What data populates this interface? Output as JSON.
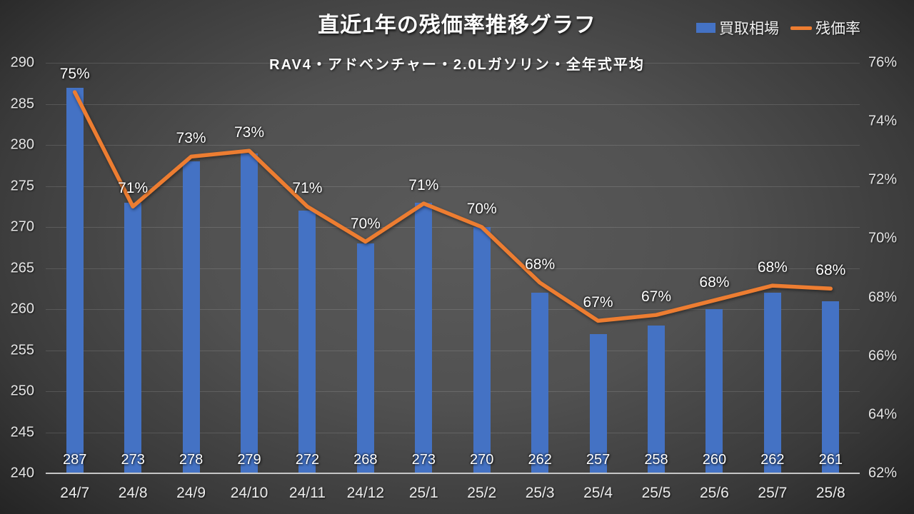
{
  "chart_data": {
    "type": "combo-bar-line",
    "title": "直近1年の残価率推移グラフ",
    "subtitle": "RAV4・アドベンチャー・2.0Lガソリン・全年式平均",
    "categories": [
      "24/7",
      "24/8",
      "24/9",
      "24/10",
      "24/11",
      "24/12",
      "25/1",
      "25/2",
      "25/3",
      "25/4",
      "25/5",
      "25/6",
      "25/7",
      "25/8"
    ],
    "series": [
      {
        "name": "買取相場",
        "type": "bar",
        "axis": "left",
        "color": "#4472C4",
        "values": [
          287,
          273,
          278,
          279,
          272,
          268,
          273,
          270,
          262,
          257,
          258,
          260,
          262,
          261
        ],
        "labels": [
          "287",
          "273",
          "278",
          "279",
          "272",
          "268",
          "273",
          "270",
          "262",
          "257",
          "258",
          "260",
          "262",
          "261"
        ]
      },
      {
        "name": "残価率",
        "type": "line",
        "axis": "right",
        "color": "#ED7D31",
        "values": [
          75,
          71,
          73,
          73,
          71,
          70,
          71,
          70,
          68,
          67,
          67,
          68,
          68,
          68
        ],
        "labels": [
          "75%",
          "71%",
          "73%",
          "73%",
          "71%",
          "70%",
          "71%",
          "70%",
          "68%",
          "67%",
          "67%",
          "68%",
          "68%",
          "68%"
        ],
        "plot_values": [
          75.0,
          71.1,
          72.8,
          73.0,
          71.1,
          69.9,
          71.2,
          70.4,
          68.5,
          67.2,
          67.4,
          67.9,
          68.4,
          68.3
        ]
      }
    ],
    "left_axis": {
      "min": 240,
      "max": 290,
      "step": 5,
      "ticks": [
        "240",
        "245",
        "250",
        "255",
        "260",
        "265",
        "270",
        "275",
        "280",
        "285",
        "290"
      ]
    },
    "right_axis": {
      "min": 62,
      "max": 76,
      "step": 2,
      "ticks": [
        "62%",
        "64%",
        "66%",
        "68%",
        "70%",
        "72%",
        "74%",
        "76%"
      ]
    },
    "grid": "horizontal",
    "legend_position": "top-right",
    "legend": [
      {
        "label": "買取相場",
        "swatch": "bar",
        "color": "#4472C4"
      },
      {
        "label": "残価率",
        "swatch": "line",
        "color": "#ED7D31"
      }
    ]
  }
}
